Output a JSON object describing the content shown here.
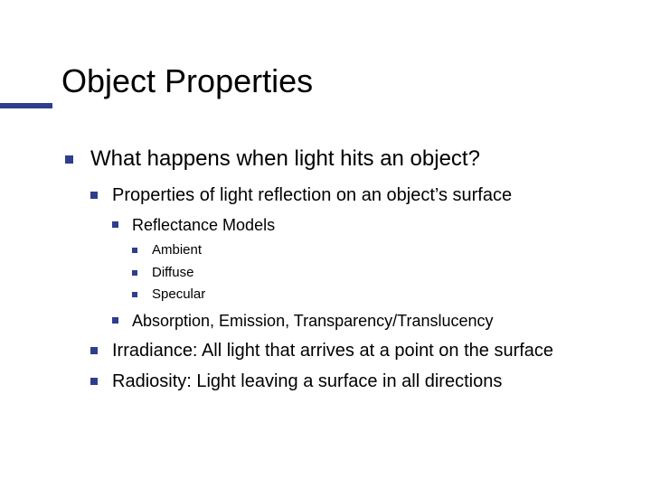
{
  "accent_color": "#2e3e8c",
  "text_color": "#000000",
  "background_color": "#ffffff",
  "title": "Object Properties",
  "title_fontsize": 36,
  "bullet_color": "#2e3e8c",
  "l1": {
    "fontsize": 24,
    "items": [
      {
        "text": "What happens when light hits an object?",
        "l2": [
          {
            "text": "Properties of light reflection on an object’s surface",
            "l3": [
              {
                "text": "Reflectance Models",
                "l4": [
                  {
                    "text": "Ambient"
                  },
                  {
                    "text": "Diffuse"
                  },
                  {
                    "text": "Specular"
                  }
                ]
              },
              {
                "text": "Absorption, Emission, Transparency/Translucency"
              }
            ]
          },
          {
            "text": "Irradiance: All light that arrives at a point on the surface"
          },
          {
            "text": "Radiosity: Light leaving a surface in all directions"
          }
        ]
      }
    ]
  }
}
